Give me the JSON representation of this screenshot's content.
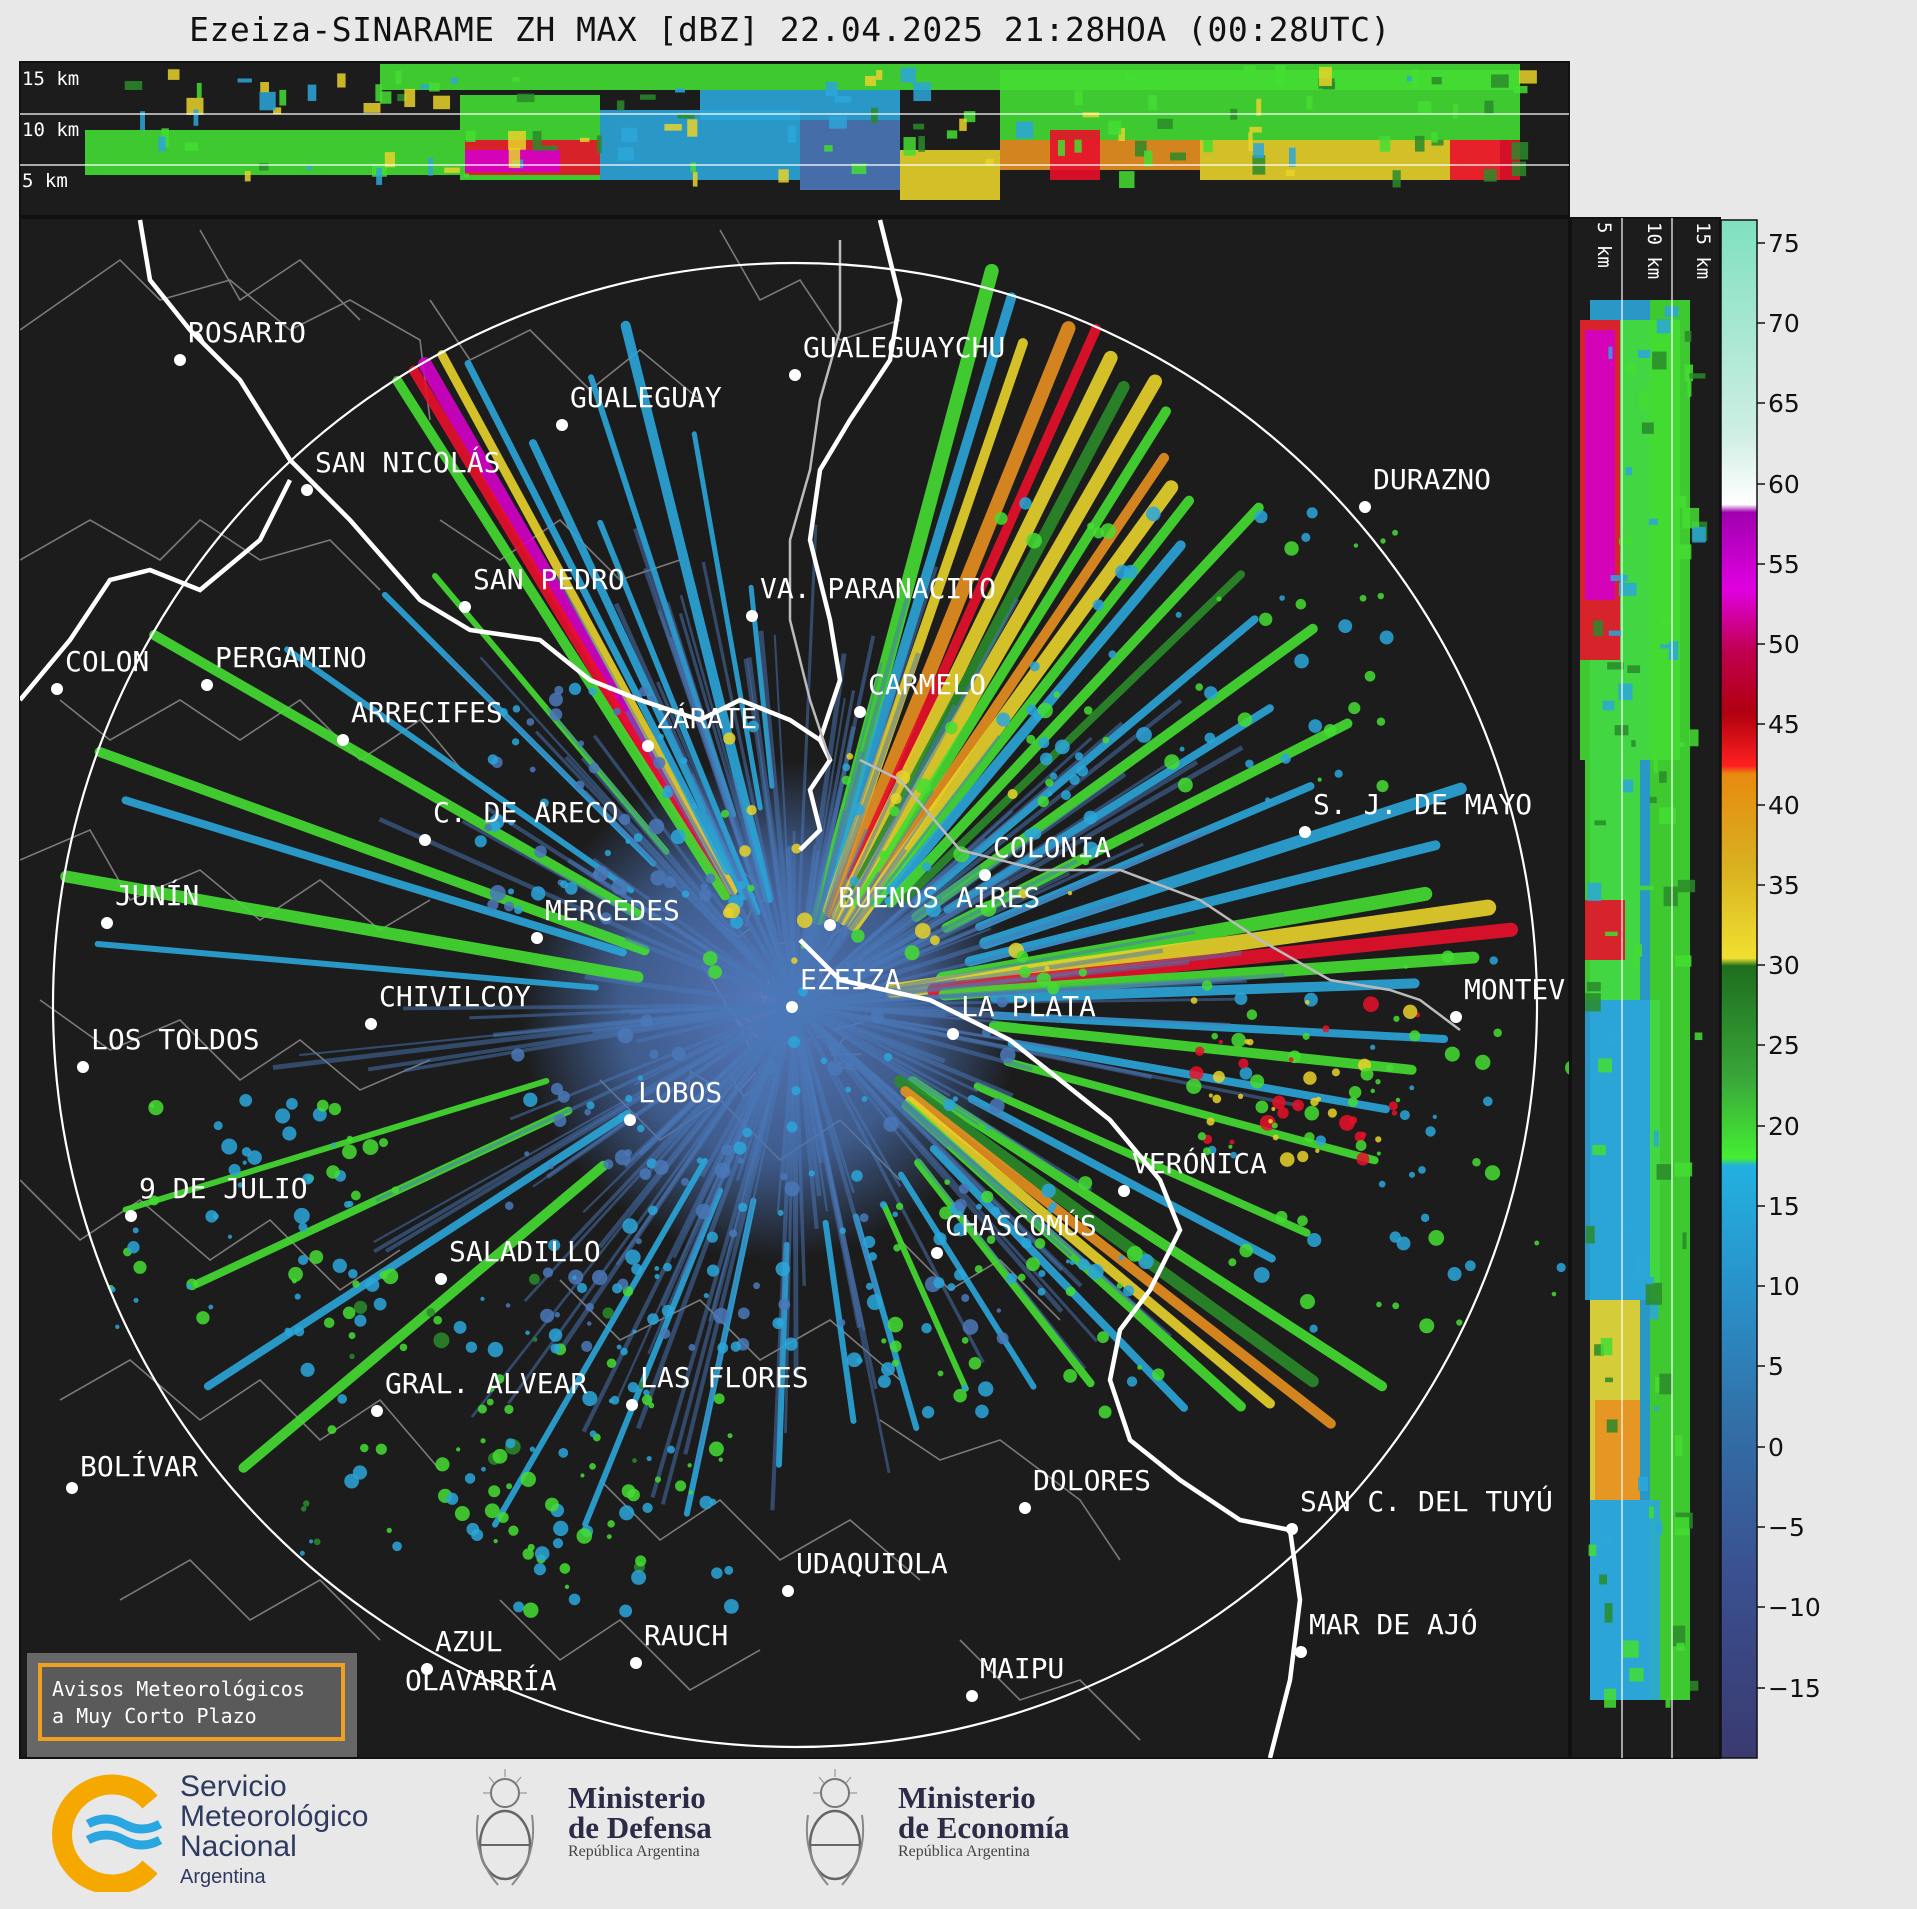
{
  "title": "Ezeiza-SINARAME ZH MAX [dBZ] 22.04.2025 21:28HOA (00:28UTC)",
  "top_profile": {
    "height_labels": [
      "15 km",
      "10 km",
      "5 km"
    ]
  },
  "side_profile": {
    "height_labels": [
      "5 km",
      "10 km",
      "15 km"
    ]
  },
  "colorbar": {
    "ticks": [
      "75",
      "70",
      "65",
      "60",
      "55",
      "50",
      "45",
      "40",
      "35",
      "30",
      "25",
      "20",
      "15",
      "10",
      "5",
      "0",
      "−5",
      "−10",
      "−15"
    ],
    "range_dbz": [
      -20,
      77
    ]
  },
  "cities": [
    {
      "name": "ROSARIO"
    },
    {
      "name": "GUALEGUAYCHU"
    },
    {
      "name": "GUALEGUAY"
    },
    {
      "name": "SAN NICOLÁS"
    },
    {
      "name": "DURAZNO"
    },
    {
      "name": "SAN PEDRO"
    },
    {
      "name": "VA. PARANACITO"
    },
    {
      "name": "COLON"
    },
    {
      "name": "PERGAMINO"
    },
    {
      "name": "CARMELO"
    },
    {
      "name": "ARRECIFES"
    },
    {
      "name": "ZÁRATE"
    },
    {
      "name": "S. J. DE MAYO"
    },
    {
      "name": "C. DE ARECO"
    },
    {
      "name": "COLONIA"
    },
    {
      "name": "JUNÍN"
    },
    {
      "name": "BUENOS AIRES"
    },
    {
      "name": "MERCEDES"
    },
    {
      "name": "MONTEV"
    },
    {
      "name": "EZEIZA"
    },
    {
      "name": "CHIVILCOY"
    },
    {
      "name": "LA PLATA"
    },
    {
      "name": "LOS TOLDOS"
    },
    {
      "name": "LOBOS"
    },
    {
      "name": "VERÓNICA"
    },
    {
      "name": "9 DE JULIO"
    },
    {
      "name": "CHASCOMÚS"
    },
    {
      "name": "SALADILLO"
    },
    {
      "name": "GRAL. ALVEAR"
    },
    {
      "name": "LAS FLORES"
    },
    {
      "name": "BOLÍVAR"
    },
    {
      "name": "DOLORES"
    },
    {
      "name": "SAN C. DEL TUYÚ"
    },
    {
      "name": "UDAQUIOLA"
    },
    {
      "name": "RAUCH"
    },
    {
      "name": "AZUL"
    },
    {
      "name": "MAR DE AJÓ"
    },
    {
      "name": "OLAVARRÍA"
    },
    {
      "name": "MAIPU"
    }
  ],
  "warning_box": {
    "line1": "Avisos Meteorológicos",
    "line2": "a Muy Corto Plazo"
  },
  "footer": {
    "smn": {
      "line1": "Servicio",
      "line2": "Meteorológico",
      "line3": "Nacional",
      "line4": "Argentina"
    },
    "defensa": {
      "line1": "Ministerio",
      "line2": "de Defensa",
      "line3": "República Argentina"
    },
    "economia": {
      "line1": "Ministerio",
      "line2": "de Economía",
      "line3": "República Argentina"
    }
  },
  "colors": {
    "background": "#1c1c1c",
    "weak_echo": "#4a78b8",
    "light": "#2ba6d9",
    "moderate": "#44dd33",
    "heavy": "#e8d22a",
    "intense": "#e8102a",
    "extreme": "#d400c8"
  }
}
